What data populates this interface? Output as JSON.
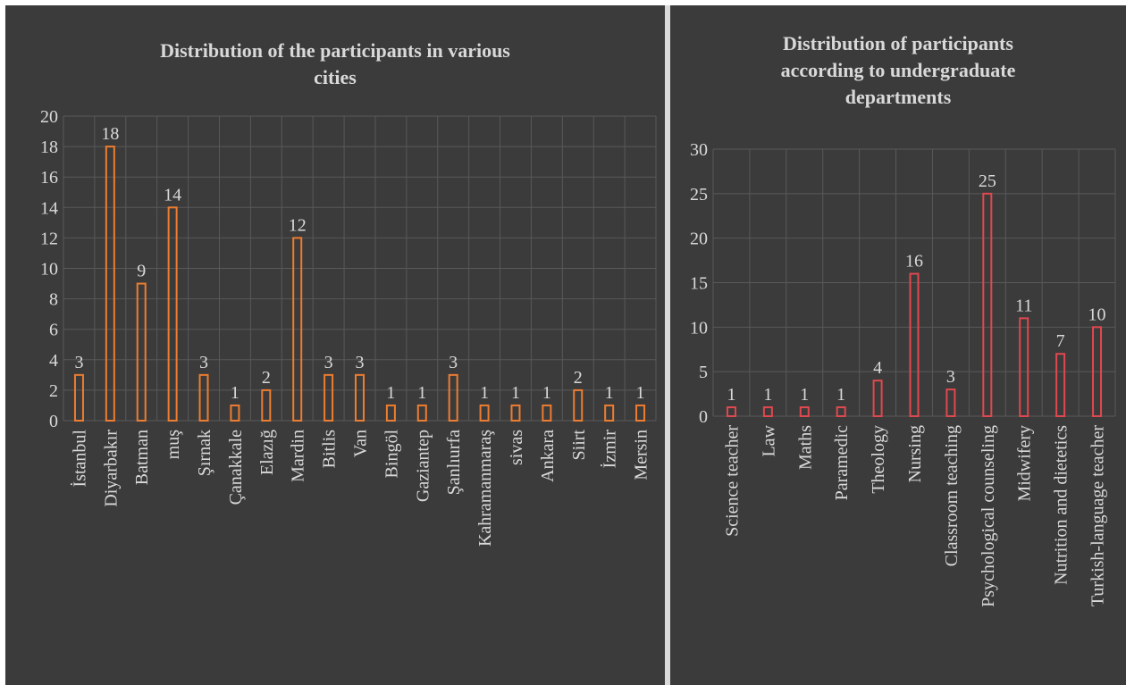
{
  "chart_data": [
    {
      "type": "bar",
      "title": "Distribution of the participants in various\ncities",
      "categories": [
        "İstanbul",
        "Diyarbakır",
        "Batman",
        "muş",
        "Şırnak",
        "Çanakkale",
        "Elazığ",
        "Mardin",
        "Bitlis",
        "Van",
        "Bingöl",
        "Gaziantep",
        "Şanlıurfa",
        "Kahramanmaraş",
        "sivas",
        "Ankara",
        "Siirt",
        "İzmir",
        "Mersin"
      ],
      "values": [
        3,
        18,
        9,
        14,
        3,
        1,
        2,
        12,
        3,
        3,
        1,
        1,
        3,
        1,
        1,
        1,
        2,
        1,
        1
      ],
      "ylim": [
        0,
        20
      ],
      "yticks": [
        0,
        2,
        4,
        6,
        8,
        10,
        12,
        14,
        16,
        18,
        20
      ],
      "grid": true,
      "bar_color": "#ed7d31",
      "xlabel": "",
      "ylabel": ""
    },
    {
      "type": "bar",
      "title": "Distribution of participants\naccording to undergraduate\ndepartments",
      "categories": [
        "Science teacher",
        "Law",
        "Maths",
        "Paramedic",
        "Theology",
        "Nursing",
        "Classroom teaching",
        "Psychological counseling",
        "Midwifery",
        "Nutrition and dietetics",
        "Turkish-language teacher"
      ],
      "values": [
        1,
        1,
        1,
        1,
        4,
        16,
        3,
        25,
        11,
        7,
        10
      ],
      "ylim": [
        0,
        30
      ],
      "yticks": [
        0,
        5,
        10,
        15,
        20,
        25,
        30
      ],
      "grid": true,
      "bar_color": "#e0484f",
      "xlabel": "",
      "ylabel": ""
    }
  ]
}
